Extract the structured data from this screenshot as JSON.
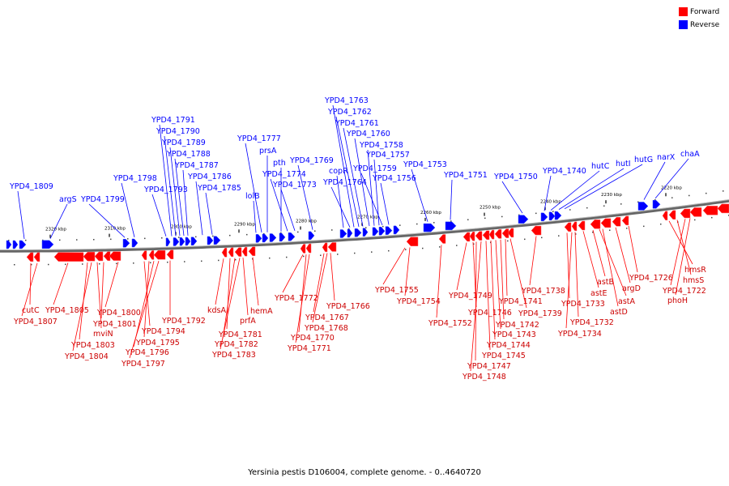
{
  "legend": [
    {
      "label": "Forward",
      "color": "#ff0000"
    },
    {
      "label": "Reverse",
      "color": "#0000ff"
    }
  ],
  "caption": "Yersinia pestis D106004, complete genome. - 0..4640720",
  "colors": {
    "forward": "#ff0000",
    "reverse": "#0000ff",
    "backbone": "#808080"
  },
  "ticks": [
    {
      "label": "2320 kbp",
      "kbp": 2320
    },
    {
      "label": "2310 kbp",
      "kbp": 2310
    },
    {
      "label": "2300 kbp",
      "kbp": 2300
    },
    {
      "label": "2290 kbp",
      "kbp": 2290
    },
    {
      "label": "2280 kbp",
      "kbp": 2280
    },
    {
      "label": "2270 kbp",
      "kbp": 2270
    },
    {
      "label": "2260 kbp",
      "kbp": 2260
    },
    {
      "label": "2250 kbp",
      "kbp": 2250
    },
    {
      "label": "2240 kbp",
      "kbp": 2240
    },
    {
      "label": "2230 kbp",
      "kbp": 2230
    },
    {
      "label": "2220 kbp",
      "kbp": 2220
    }
  ],
  "reverse_genes": [
    "YPD4_1809",
    "argS",
    "YPD4_1799",
    "YPD4_1798",
    "YPD4_1793",
    "YPD4_1791",
    "YPD4_1790",
    "YPD4_1789",
    "YPD4_1788",
    "YPD4_1787",
    "YPD4_1786",
    "YPD4_1785",
    "lolB",
    "YPD4_1777",
    "prsA",
    "pth",
    "YPD4_1774",
    "YPD4_1773",
    "YPD4_1769",
    "copR",
    "YPD4_1764",
    "YPD4_1763",
    "YPD4_1762",
    "YPD4_1761",
    "YPD4_1760",
    "YPD4_1758",
    "YPD4_1757",
    "YPD4_1759",
    "YPD4_1756",
    "YPD4_1753",
    "YPD4_1751",
    "YPD4_1750",
    "YPD4_1740",
    "hutC",
    "hutI",
    "hutG",
    "narX",
    "chaA"
  ],
  "forward_genes": [
    "cutC",
    "YPD4_1807",
    "YPD4_1805",
    "YPD4_1803",
    "YPD4_1804",
    "mviN",
    "YPD4_1801",
    "YPD4_1800",
    "YPD4_1794",
    "YPD4_1795",
    "YPD4_1796",
    "YPD4_1797",
    "YPD4_1792",
    "kdsA",
    "YPD4_1781",
    "YPD4_1782",
    "YPD4_1783",
    "prfA",
    "hemA",
    "YPD4_1772",
    "YPD4_1770",
    "YPD4_1771",
    "YPD4_1767",
    "YPD4_1768",
    "YPD4_1766",
    "YPD4_1755",
    "YPD4_1754",
    "YPD4_1752",
    "YPD4_1749",
    "YPD4_1746",
    "YPD4_1747",
    "YPD4_1748",
    "YPD4_1745",
    "YPD4_1744",
    "YPD4_1743",
    "YPD4_1742",
    "YPD4_1741",
    "YPD4_1739",
    "YPD4_1738",
    "YPD4_1733",
    "YPD4_1734",
    "YPD4_1732",
    "astE",
    "astB",
    "astA",
    "astD",
    "argD",
    "YPD4_1726",
    "hmsR",
    "hmsS",
    "YPD4_1722",
    "phoH"
  ]
}
